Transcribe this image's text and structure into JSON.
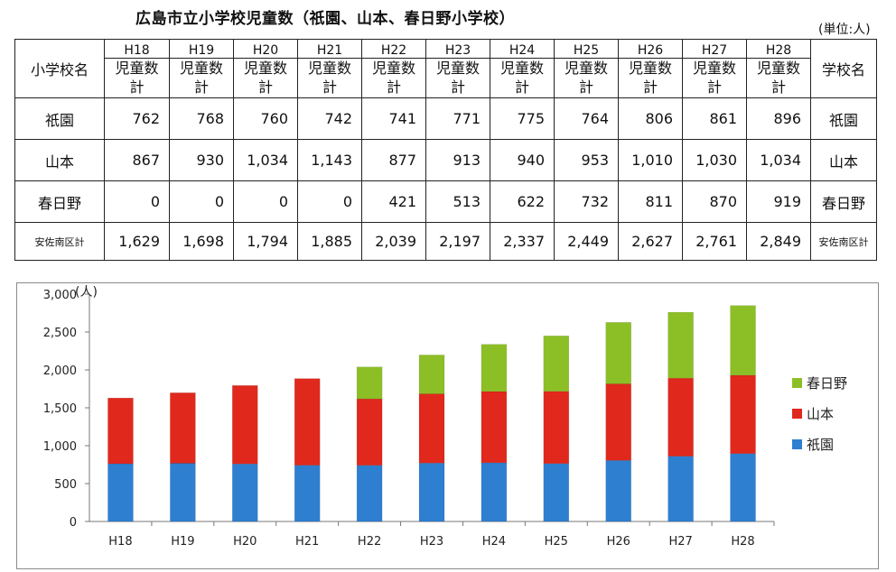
{
  "title": "広島市立小学校児童数（祇園、山本、春日野小学校）",
  "unit": "(単位:人)",
  "table": {
    "header_left": "小学校名",
    "header_right": "学校名",
    "years": [
      "H18",
      "H19",
      "H20",
      "H21",
      "H22",
      "H23",
      "H24",
      "H25",
      "H26",
      "H27",
      "H28"
    ],
    "col_label_line1": "児童数",
    "col_label_line2": "計",
    "rows": [
      {
        "name": "祇園",
        "values": [
          "762",
          "768",
          "760",
          "742",
          "741",
          "771",
          "775",
          "764",
          "806",
          "861",
          "896"
        ],
        "name_right": "祇園"
      },
      {
        "name": "山本",
        "values": [
          "867",
          "930",
          "1,034",
          "1,143",
          "877",
          "913",
          "940",
          "953",
          "1,010",
          "1,030",
          "1,034"
        ],
        "name_right": "山本"
      },
      {
        "name": "春日野",
        "values": [
          "0",
          "0",
          "0",
          "0",
          "421",
          "513",
          "622",
          "732",
          "811",
          "870",
          "919"
        ],
        "name_right": "春日野"
      }
    ],
    "total": {
      "name": "安佐南区計",
      "values": [
        "1,629",
        "1,698",
        "1,794",
        "1,885",
        "2,039",
        "2,197",
        "2,337",
        "2,449",
        "2,627",
        "2,761",
        "2,849"
      ],
      "name_right": "安佐南区計"
    }
  },
  "chart_data": {
    "type": "bar",
    "stacked": true,
    "y_unit": "(人)",
    "categories": [
      "H18",
      "H19",
      "H20",
      "H21",
      "H22",
      "H23",
      "H24",
      "H25",
      "H26",
      "H27",
      "H28"
    ],
    "series": [
      {
        "name": "祇園",
        "values": [
          762,
          768,
          760,
          742,
          741,
          771,
          775,
          764,
          806,
          861,
          896
        ],
        "color": "#2e7fd0"
      },
      {
        "name": "山本",
        "values": [
          867,
          930,
          1034,
          1143,
          877,
          913,
          940,
          953,
          1010,
          1030,
          1034
        ],
        "color": "#e0281c"
      },
      {
        "name": "春日野",
        "values": [
          0,
          0,
          0,
          0,
          421,
          513,
          622,
          732,
          811,
          870,
          919
        ],
        "color": "#8cbf26"
      }
    ],
    "ylim": [
      0,
      3000
    ],
    "yticks": [
      0,
      500,
      1000,
      1500,
      2000,
      2500,
      3000
    ],
    "ytick_labels": [
      "0",
      "500",
      "1,000",
      "1,500",
      "2,000",
      "2,500",
      "3,000"
    ],
    "grid": false,
    "legend_position": "right"
  }
}
